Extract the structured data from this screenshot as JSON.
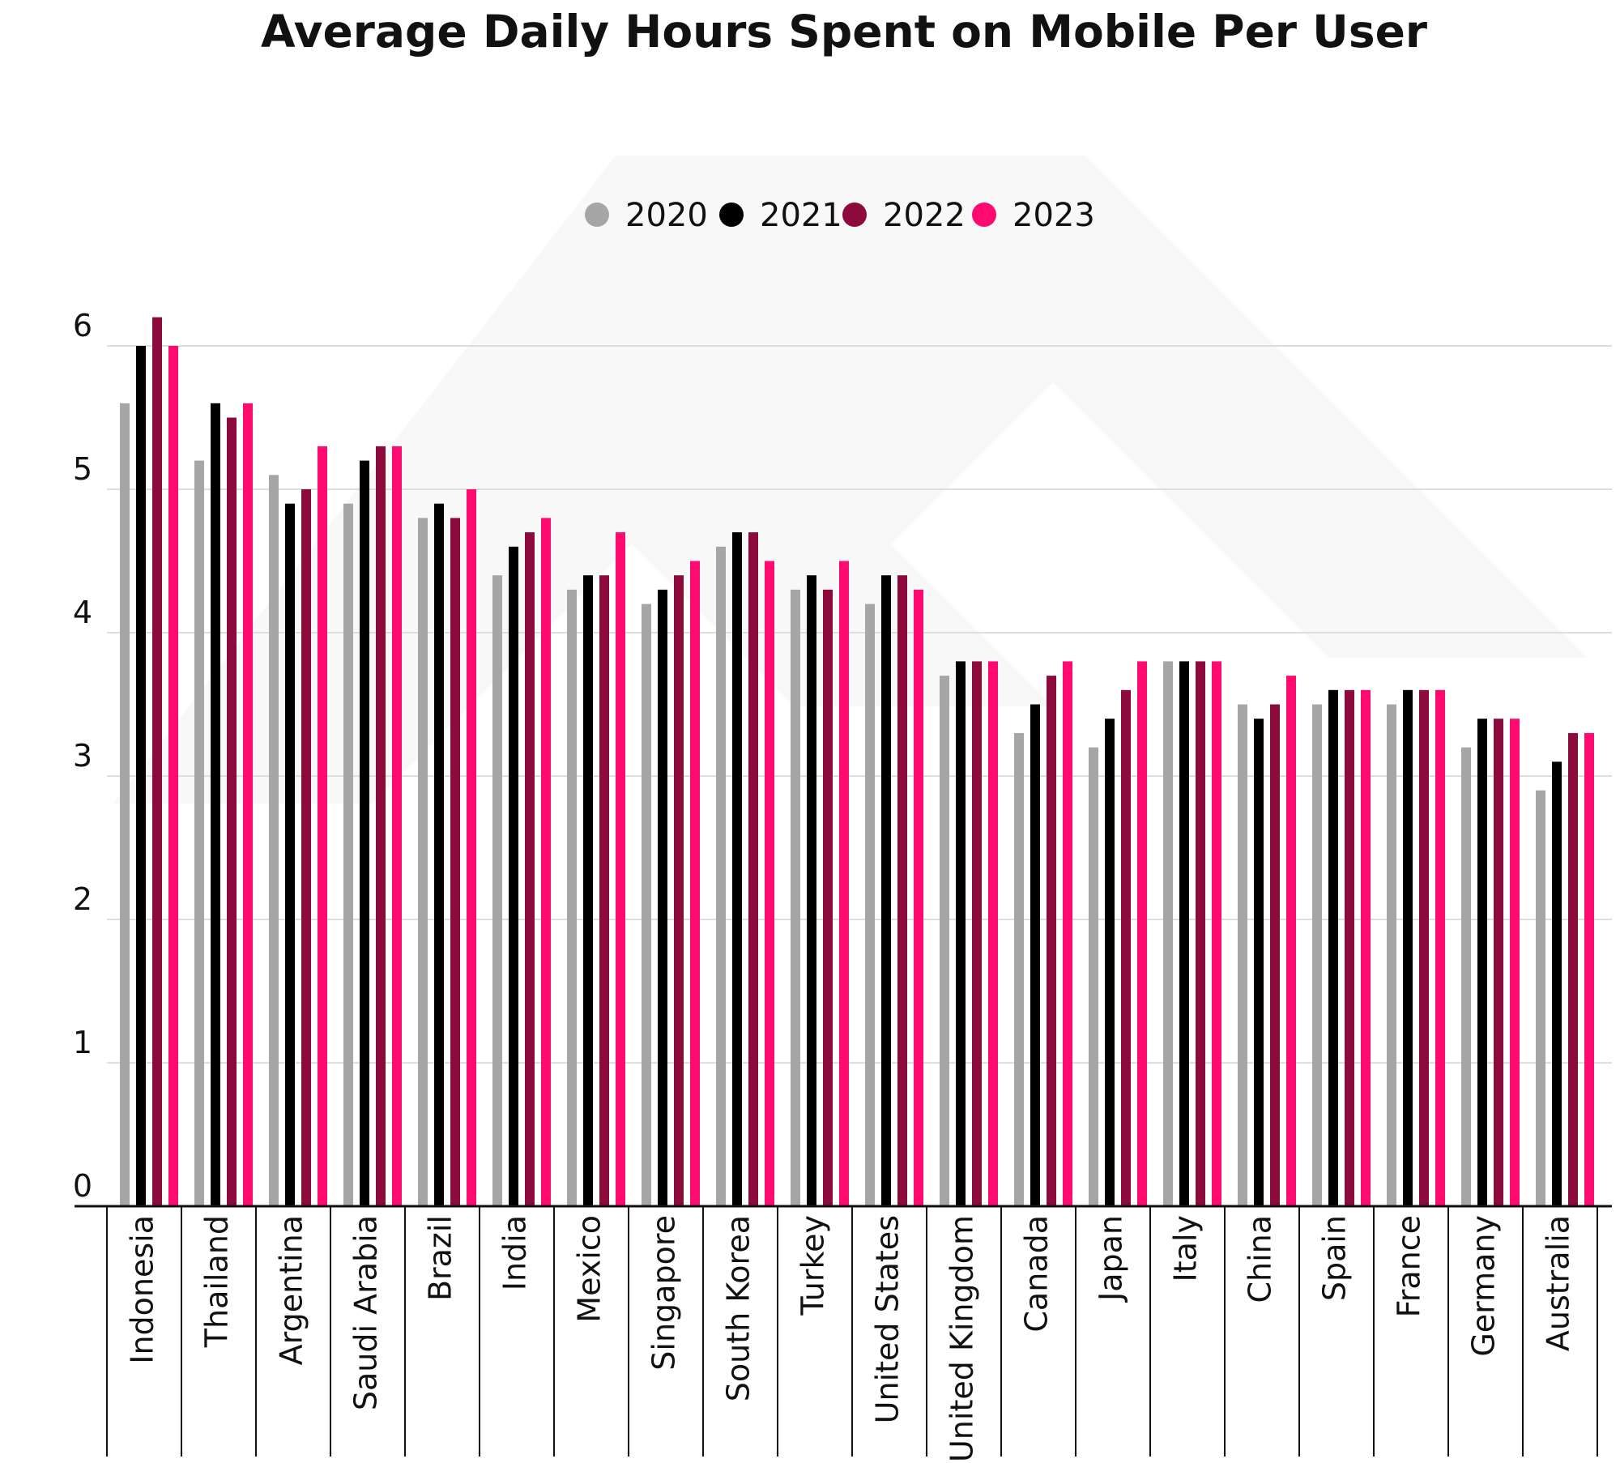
{
  "chart_data": {
    "type": "bar",
    "title": "Average Daily Hours Spent on Mobile Per User",
    "xlabel": "",
    "ylabel": "",
    "ylim": [
      0,
      6
    ],
    "yticks": [
      0,
      1,
      2,
      3,
      4,
      5,
      6
    ],
    "grid": true,
    "legend_position": "top-center",
    "categories": [
      "Indonesia",
      "Thailand",
      "Argentina",
      "Saudi Arabia",
      "Brazil",
      "India",
      "Mexico",
      "Singapore",
      "South Korea",
      "Turkey",
      "United States",
      "United Kingdom",
      "Canada",
      "Japan",
      "Italy",
      "China",
      "Spain",
      "France",
      "Germany",
      "Australia"
    ],
    "series": [
      {
        "name": "2020",
        "color": "#a6a6a6",
        "values": [
          5.6,
          5.2,
          5.1,
          4.9,
          4.8,
          4.4,
          4.3,
          4.2,
          4.6,
          4.3,
          4.2,
          3.7,
          3.3,
          3.2,
          3.8,
          3.5,
          3.5,
          3.5,
          3.2,
          2.9
        ]
      },
      {
        "name": "2021",
        "color": "#000000",
        "values": [
          6.0,
          5.6,
          4.9,
          5.2,
          4.9,
          4.6,
          4.4,
          4.3,
          4.7,
          4.4,
          4.4,
          3.8,
          3.5,
          3.4,
          3.8,
          3.4,
          3.6,
          3.6,
          3.4,
          3.1
        ]
      },
      {
        "name": "2022",
        "color": "#8c0a3c",
        "values": [
          6.2,
          5.5,
          5.0,
          5.3,
          4.8,
          4.7,
          4.4,
          4.4,
          4.7,
          4.3,
          4.4,
          3.8,
          3.7,
          3.6,
          3.8,
          3.5,
          3.6,
          3.6,
          3.4,
          3.3
        ]
      },
      {
        "name": "2023",
        "color": "#ff0a6e",
        "values": [
          6.0,
          5.6,
          5.3,
          5.3,
          5.0,
          4.8,
          4.7,
          4.5,
          4.5,
          4.5,
          4.3,
          3.8,
          3.8,
          3.8,
          3.8,
          3.7,
          3.6,
          3.6,
          3.4,
          3.3
        ]
      }
    ]
  }
}
